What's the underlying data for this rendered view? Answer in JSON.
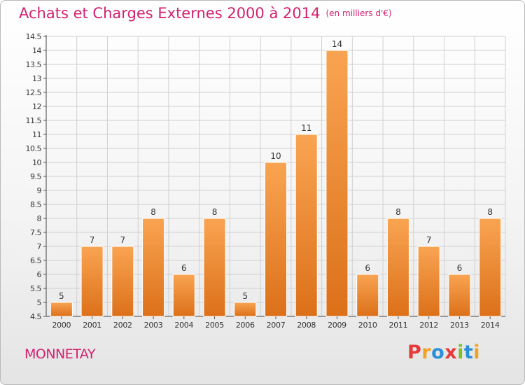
{
  "header": {
    "title": "Achats et Charges Externes 2000 à 2014",
    "subtitle": "(en milliers d'€)"
  },
  "footer": {
    "commune": "MONNETAY",
    "logo_text": "Proxiti"
  },
  "colors": {
    "title": "#d4206f",
    "bar_light": "#f9a452",
    "bar_dark": "#dc7019",
    "grid": "#d0d0d0",
    "logo_letters": [
      "#e63a3a",
      "#f2a31d",
      "#2a8fd8",
      "#e63a3a",
      "#7fbf2a",
      "#2a8fd8",
      "#f2a31d"
    ]
  },
  "chart_data": {
    "type": "bar",
    "title": "Achats et Charges Externes 2000 à 2014",
    "subtitle": "(en milliers d'€)",
    "xlabel": "",
    "ylabel": "",
    "categories": [
      "2000",
      "2001",
      "2002",
      "2003",
      "2004",
      "2005",
      "2006",
      "2007",
      "2008",
      "2009",
      "2010",
      "2011",
      "2012",
      "2013",
      "2014"
    ],
    "values": [
      5,
      7,
      7,
      8,
      6,
      8,
      5,
      10,
      11,
      14,
      6,
      8,
      7,
      6,
      8
    ],
    "data_labels": [
      "5",
      "7",
      "7",
      "8",
      "6",
      "8",
      "5",
      "10",
      "11",
      "14",
      "6",
      "8",
      "7",
      "6",
      "8"
    ],
    "ylim": [
      4.5,
      14.5
    ],
    "yticks": [
      4.5,
      5,
      5.5,
      6,
      6.5,
      7,
      7.5,
      8,
      8.5,
      9,
      9.5,
      10,
      10.5,
      11,
      11.5,
      12,
      12.5,
      13,
      13.5,
      14,
      14.5
    ],
    "ytick_labels": [
      "4.5",
      "5",
      "5.5",
      "6",
      "6.5",
      "7",
      "7.5",
      "8",
      "8.5",
      "9",
      "9.5",
      "10",
      "10.5",
      "11",
      "11.5",
      "12",
      "12.5",
      "13",
      "13.5",
      "14",
      "14.5"
    ],
    "grid": true,
    "legend": "none"
  }
}
